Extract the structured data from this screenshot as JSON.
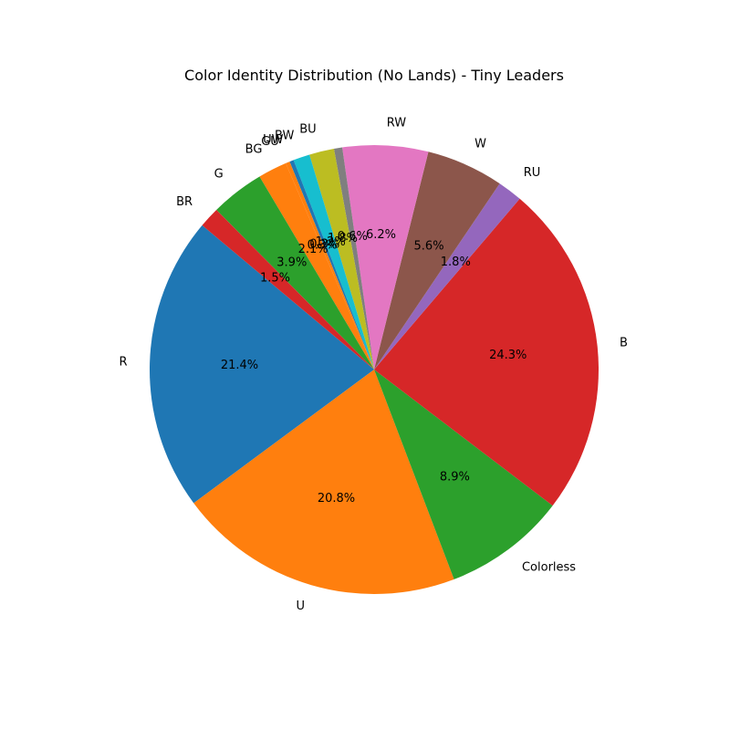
{
  "chart_data": {
    "type": "pie",
    "title": "Color Identity Distribution (No Lands) - Tiny Leaders",
    "start_angle_deg": 140,
    "direction": "counterclockwise",
    "slices": [
      {
        "label": "R",
        "value": 21.4,
        "pct_label": "21.4%",
        "color": "#1f77b4"
      },
      {
        "label": "U",
        "value": 20.8,
        "pct_label": "20.8%",
        "color": "#ff7f0e"
      },
      {
        "label": "Colorless",
        "value": 8.9,
        "pct_label": "8.9%",
        "color": "#2ca02c"
      },
      {
        "label": "B",
        "value": 24.3,
        "pct_label": "24.3%",
        "color": "#d62728"
      },
      {
        "label": "RU",
        "value": 1.8,
        "pct_label": "1.8%",
        "color": "#9467bd"
      },
      {
        "label": "W",
        "value": 5.6,
        "pct_label": "5.6%",
        "color": "#8c564b"
      },
      {
        "label": "RW",
        "value": 6.2,
        "pct_label": "6.2%",
        "color": "#e377c2"
      },
      {
        "label": "",
        "value": 0.6,
        "pct_label": "0.6%",
        "color": "#7f7f7f"
      },
      {
        "label": "BU",
        "value": 1.8,
        "pct_label": "1.8%",
        "color": "#bcbd22"
      },
      {
        "label": "BW",
        "value": 1.2,
        "pct_label": "1.2%",
        "color": "#17becf"
      },
      {
        "label": "UW",
        "value": 0.3,
        "pct_label": "0.3%",
        "color": "#1f77b4"
      },
      {
        "label": "GU",
        "value": 0.3,
        "pct_label": "0.3%",
        "color": "#ff7f0e"
      },
      {
        "label": "BG",
        "value": 2.1,
        "pct_label": "2.1%",
        "color": "#ff7f0e"
      },
      {
        "label": "G",
        "value": 3.9,
        "pct_label": "3.9%",
        "color": "#2ca02c"
      },
      {
        "label": "BR",
        "value": 1.5,
        "pct_label": "1.5%",
        "color": "#d62728"
      }
    ]
  }
}
